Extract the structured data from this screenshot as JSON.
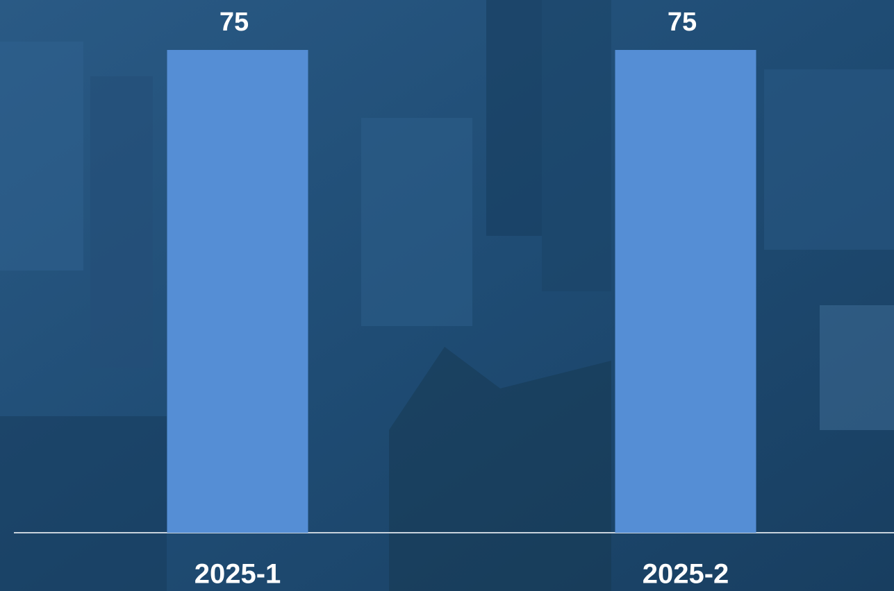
{
  "chart_data": {
    "type": "bar",
    "categories": [
      "2025-1",
      "2025-2"
    ],
    "values": [
      75,
      75
    ],
    "color": "#558ed5"
  }
}
